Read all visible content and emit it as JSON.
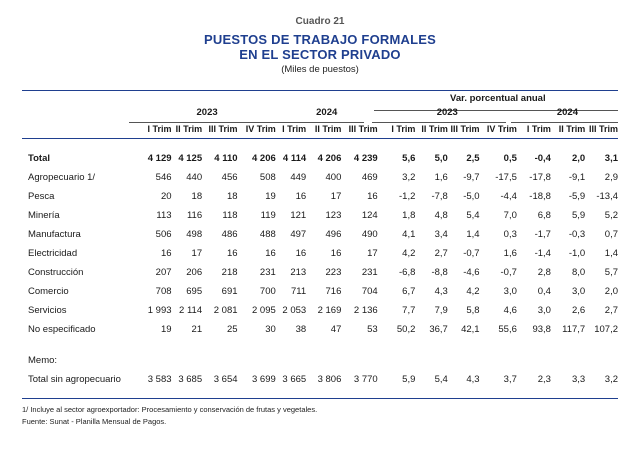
{
  "header": {
    "cuadro": "Cuadro 21",
    "title_line1": "PUESTOS DE TRABAJO FORMALES",
    "title_line2": "EN EL SECTOR PRIVADO",
    "subtitle": "(Miles de puestos)"
  },
  "columns": {
    "var_header": "Var. porcentual anual",
    "year_2023": "2023",
    "year_2024": "2024",
    "var_2023": "2023",
    "var_2024": "2024",
    "quarters": [
      "I Trim",
      "II Trim",
      "III Trim",
      "IV Trim",
      "I Trim",
      "II Trim",
      "III Trim",
      "I Trim",
      "II Trim",
      "III Trim",
      "IV Trim",
      "I Trim",
      "II Trim",
      "III Trim"
    ]
  },
  "rows": [
    {
      "label": "Total",
      "values": [
        "4 129",
        "4 125",
        "4 110",
        "4 206",
        "4 114",
        "4 206",
        "4 239",
        "5,6",
        "5,0",
        "2,5",
        "0,5",
        "-0,4",
        "2,0",
        "3,1"
      ]
    },
    {
      "label": "Agropecuario 1/",
      "values": [
        "546",
        "440",
        "456",
        "508",
        "449",
        "400",
        "469",
        "3,2",
        "1,6",
        "-9,7",
        "-17,5",
        "-17,8",
        "-9,1",
        "2,9"
      ]
    },
    {
      "label": "Pesca",
      "values": [
        "20",
        "18",
        "18",
        "19",
        "16",
        "17",
        "16",
        "-1,2",
        "-7,8",
        "-5,0",
        "-4,4",
        "-18,8",
        "-5,9",
        "-13,4"
      ]
    },
    {
      "label": "Minería",
      "values": [
        "113",
        "116",
        "118",
        "119",
        "121",
        "123",
        "124",
        "1,8",
        "4,8",
        "5,4",
        "7,0",
        "6,8",
        "5,9",
        "5,2"
      ]
    },
    {
      "label": "Manufactura",
      "values": [
        "506",
        "498",
        "486",
        "488",
        "497",
        "496",
        "490",
        "4,1",
        "3,4",
        "1,4",
        "0,3",
        "-1,7",
        "-0,3",
        "0,7"
      ]
    },
    {
      "label": "Electricidad",
      "values": [
        "16",
        "17",
        "16",
        "16",
        "16",
        "16",
        "17",
        "4,2",
        "2,7",
        "-0,7",
        "1,6",
        "-1,4",
        "-1,0",
        "1,4"
      ]
    },
    {
      "label": "Construcción",
      "values": [
        "207",
        "206",
        "218",
        "231",
        "213",
        "223",
        "231",
        "-6,8",
        "-8,8",
        "-4,6",
        "-0,7",
        "2,8",
        "8,0",
        "5,7"
      ]
    },
    {
      "label": "Comercio",
      "values": [
        "708",
        "695",
        "691",
        "700",
        "711",
        "716",
        "704",
        "6,7",
        "4,3",
        "4,2",
        "3,0",
        "0,4",
        "3,0",
        "2,0"
      ]
    },
    {
      "label": "Servicios",
      "values": [
        "1 993",
        "2 114",
        "2 081",
        "2 095",
        "2 053",
        "2 169",
        "2 136",
        "7,7",
        "7,9",
        "5,8",
        "4,6",
        "3,0",
        "2,6",
        "2,7"
      ]
    },
    {
      "label": "No especificado",
      "values": [
        "19",
        "21",
        "25",
        "30",
        "38",
        "47",
        "53",
        "50,2",
        "36,7",
        "42,1",
        "55,6",
        "93,8",
        "117,7",
        "107,2"
      ]
    }
  ],
  "memo": {
    "label": "Memo:",
    "row": {
      "label": "Total sin agropecuario",
      "values": [
        "3 583",
        "3 685",
        "3 654",
        "3 699",
        "3 665",
        "3 806",
        "3 770",
        "5,9",
        "5,4",
        "4,3",
        "3,7",
        "2,3",
        "3,3",
        "3,2"
      ]
    }
  },
  "notes": {
    "note1": "1/ Incluye al sector agroexportador: Procesamiento y conservación de frutas y vegetales.",
    "source": "Fuente: Sunat - Planilla Mensual de Pagos."
  },
  "colors": {
    "title": "#1f3f8f",
    "rule": "#1f3f8f"
  }
}
